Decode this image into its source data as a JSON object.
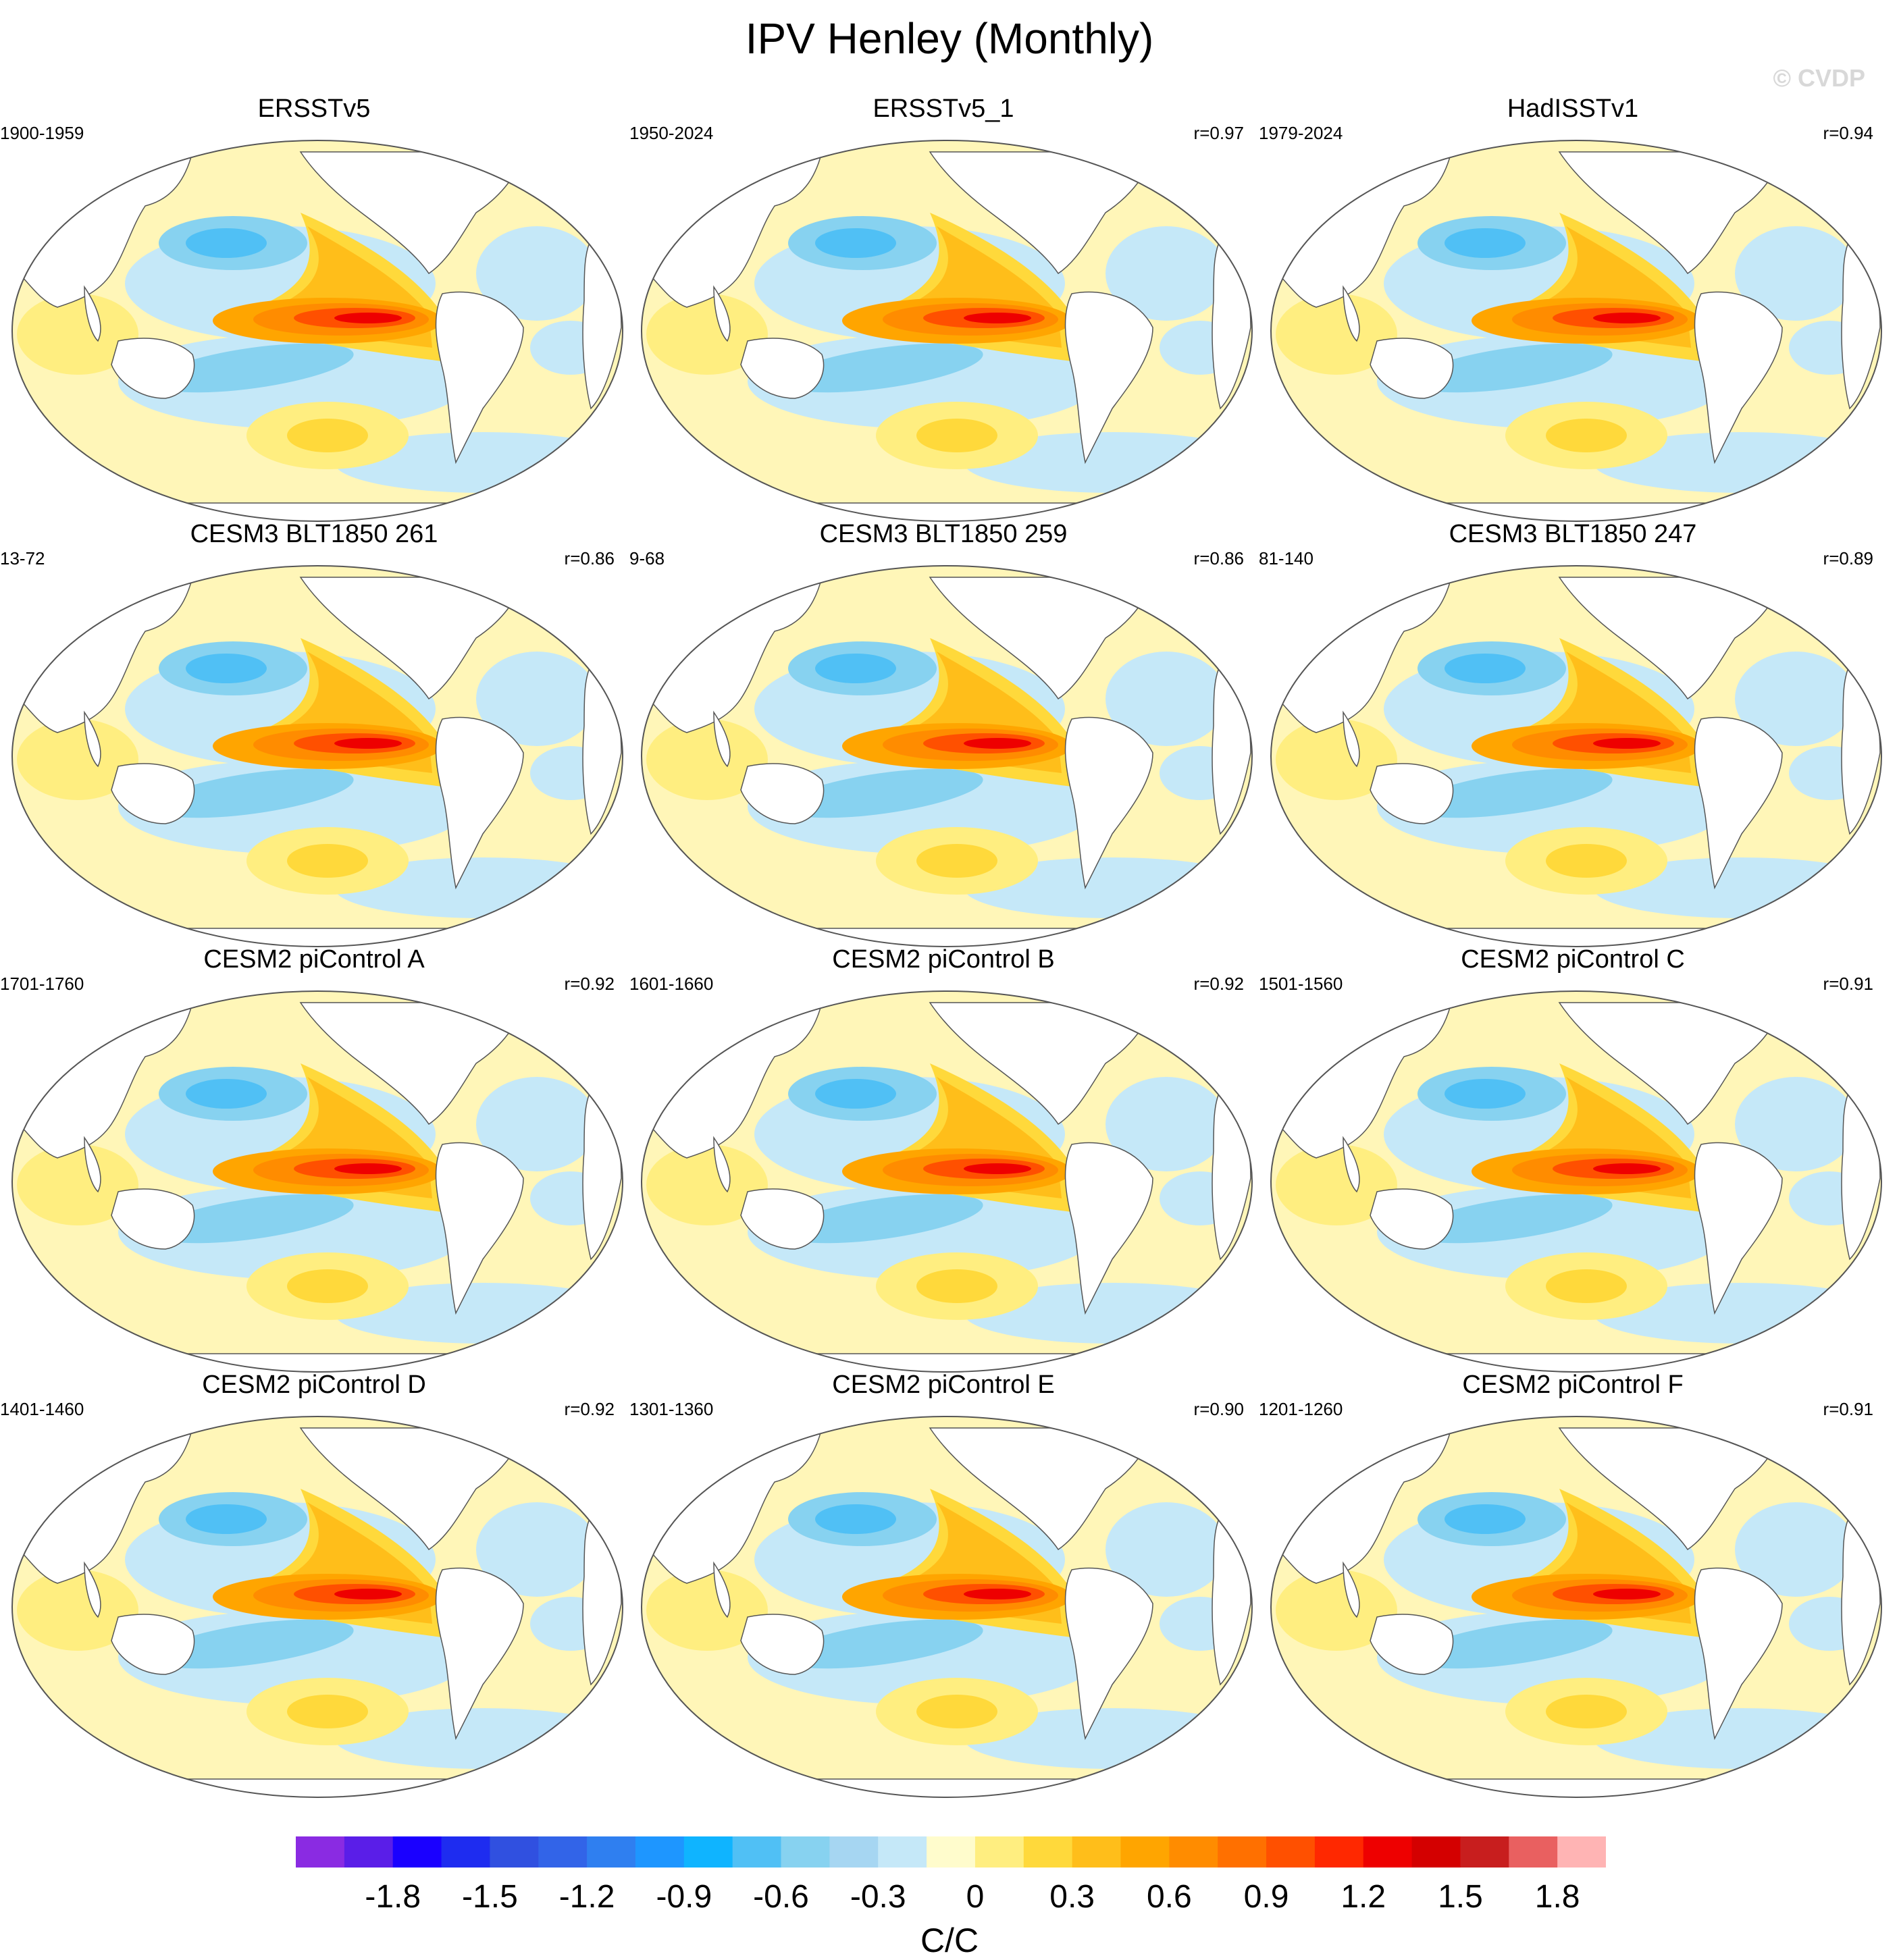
{
  "title": "IPV Henley (Monthly)",
  "watermark": "© CVDP",
  "panels": [
    {
      "title": "ERSSTv5",
      "range": "1900-1959",
      "corr": ""
    },
    {
      "title": "ERSSTv5_1",
      "range": "1950-2024",
      "corr": "r=0.97"
    },
    {
      "title": "HadISSTv1",
      "range": "1979-2024",
      "corr": "r=0.94"
    },
    {
      "title": "CESM3 BLT1850 261",
      "range": "13-72",
      "corr": "r=0.86"
    },
    {
      "title": "CESM3 BLT1850 259",
      "range": "9-68",
      "corr": "r=0.86"
    },
    {
      "title": "CESM3 BLT1850 247",
      "range": "81-140",
      "corr": "r=0.89"
    },
    {
      "title": "CESM2 piControl A",
      "range": "1701-1760",
      "corr": "r=0.92"
    },
    {
      "title": "CESM2 piControl B",
      "range": "1601-1660",
      "corr": "r=0.92"
    },
    {
      "title": "CESM2 piControl C",
      "range": "1501-1560",
      "corr": "r=0.91"
    },
    {
      "title": "CESM2 piControl D",
      "range": "1401-1460",
      "corr": "r=0.92"
    },
    {
      "title": "CESM2 piControl E",
      "range": "1301-1360",
      "corr": "r=0.90"
    },
    {
      "title": "CESM2 piControl F",
      "range": "1201-1260",
      "corr": "r=0.91"
    }
  ],
  "colorbar": {
    "unit": "C/C",
    "tick_labels": [
      "-1.8",
      "-1.5",
      "-1.2",
      "-0.9",
      "-0.6",
      "-0.3",
      "0",
      "0.3",
      "0.6",
      "0.9",
      "1.2",
      "1.5",
      "1.8"
    ],
    "colors": [
      "#8a2be2",
      "#5a1ee8",
      "#1a00ff",
      "#1e2cf0",
      "#3050e0",
      "#3264e8",
      "#2f7ff0",
      "#1e96ff",
      "#0fb4ff",
      "#50c0f5",
      "#87d2f0",
      "#a6d6f2",
      "#c5e8f8",
      "#fffccc",
      "#ffee80",
      "#ffd93b",
      "#ffbe1a",
      "#ffa500",
      "#ff8c00",
      "#ff7000",
      "#ff5000",
      "#ff2800",
      "#ee0000",
      "#d40000",
      "#c81e1e",
      "#e96060",
      "#ffb4b4"
    ]
  }
}
